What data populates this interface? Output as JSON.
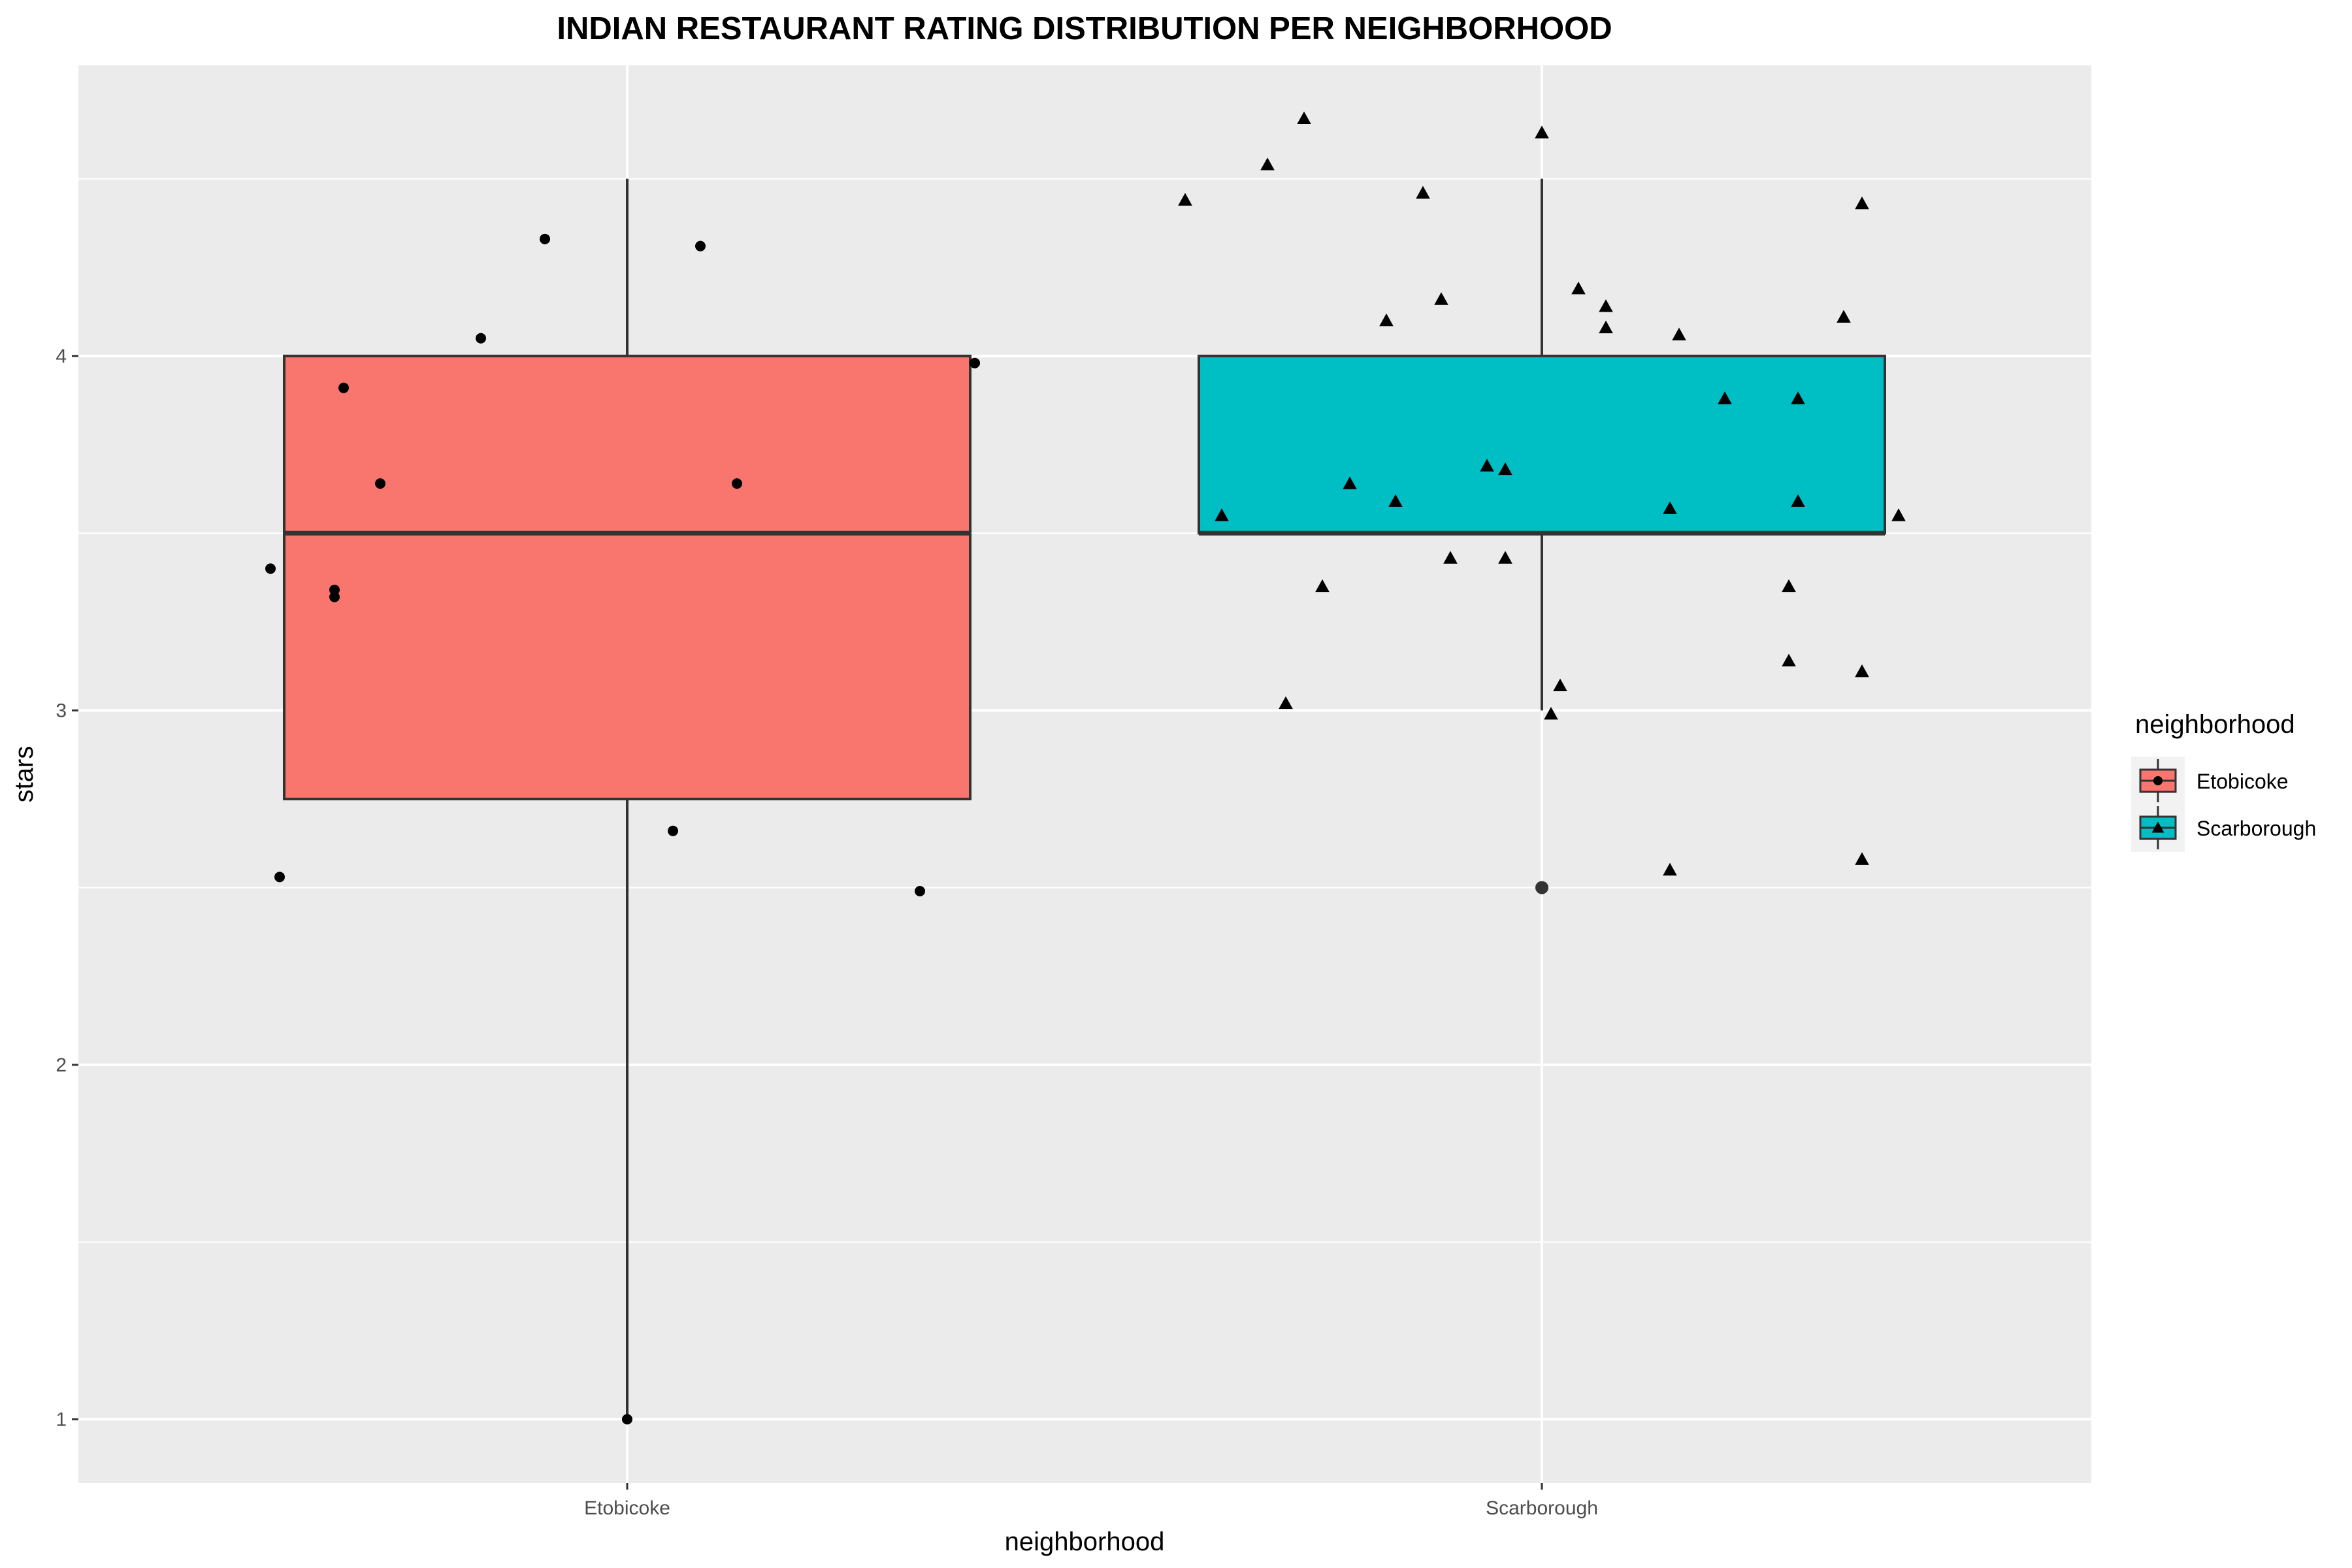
{
  "chart_data": {
    "type": "box",
    "title": "INDIAN RESTAURANT RATING DISTRIBUTION PER NEIGHBORHOOD",
    "xlabel": "neighborhood",
    "ylabel": "stars",
    "categories": [
      "Etobicoke",
      "Scarborough"
    ],
    "ylim": [
      0.82,
      4.82
    ],
    "yticks": [
      1,
      2,
      3,
      4
    ],
    "grid": true,
    "legend": {
      "title": "neighborhood",
      "position": "right",
      "entries": [
        "Etobicoke",
        "Scarborough"
      ]
    },
    "colors": {
      "Etobicoke": "#F8766D",
      "Scarborough": "#00BFC4",
      "panel": "#EBEBEB",
      "grid": "#FFFFFF"
    },
    "series": [
      {
        "name": "Etobicoke",
        "shape": "circle",
        "box": {
          "lower_whisker": 1.0,
          "q1": 2.75,
          "median": 3.5,
          "q3": 4.0,
          "upper_whisker": 4.5
        },
        "outliers": [],
        "points": [
          [
            -0.39,
            3.4
          ],
          [
            -0.38,
            2.53
          ],
          [
            -0.32,
            3.34
          ],
          [
            -0.32,
            3.32
          ],
          [
            -0.31,
            3.91
          ],
          [
            -0.27,
            3.64
          ],
          [
            -0.16,
            4.05
          ],
          [
            -0.09,
            4.33
          ],
          [
            0.0,
            1.0
          ],
          [
            0.05,
            2.66
          ],
          [
            0.08,
            4.31
          ],
          [
            0.12,
            3.64
          ],
          [
            0.32,
            2.49
          ],
          [
            0.38,
            3.98
          ]
        ]
      },
      {
        "name": "Scarborough",
        "shape": "triangle",
        "box": {
          "lower_whisker": 3.0,
          "q1": 3.5,
          "median": 3.5,
          "q3": 4.0,
          "upper_whisker": 4.5
        },
        "outliers": [
          2.5
        ],
        "points": [
          [
            -0.39,
            4.44
          ],
          [
            -0.35,
            3.55
          ],
          [
            -0.3,
            4.54
          ],
          [
            -0.28,
            3.02
          ],
          [
            -0.26,
            4.67
          ],
          [
            -0.24,
            3.35
          ],
          [
            -0.21,
            3.64
          ],
          [
            -0.17,
            4.1
          ],
          [
            -0.16,
            3.59
          ],
          [
            -0.13,
            4.46
          ],
          [
            -0.11,
            4.16
          ],
          [
            -0.1,
            3.43
          ],
          [
            -0.06,
            3.69
          ],
          [
            -0.04,
            3.43
          ],
          [
            -0.04,
            3.68
          ],
          [
            0.0,
            4.63
          ],
          [
            0.01,
            2.99
          ],
          [
            0.02,
            3.07
          ],
          [
            0.04,
            4.19
          ],
          [
            0.07,
            4.14
          ],
          [
            0.07,
            4.08
          ],
          [
            0.14,
            2.55
          ],
          [
            0.14,
            3.57
          ],
          [
            0.15,
            4.06
          ],
          [
            0.2,
            3.88
          ],
          [
            0.27,
            3.35
          ],
          [
            0.27,
            3.14
          ],
          [
            0.28,
            3.88
          ],
          [
            0.28,
            3.59
          ],
          [
            0.33,
            4.11
          ],
          [
            0.35,
            4.43
          ],
          [
            0.35,
            3.11
          ],
          [
            0.35,
            2.58
          ],
          [
            0.39,
            3.55
          ]
        ]
      }
    ]
  }
}
